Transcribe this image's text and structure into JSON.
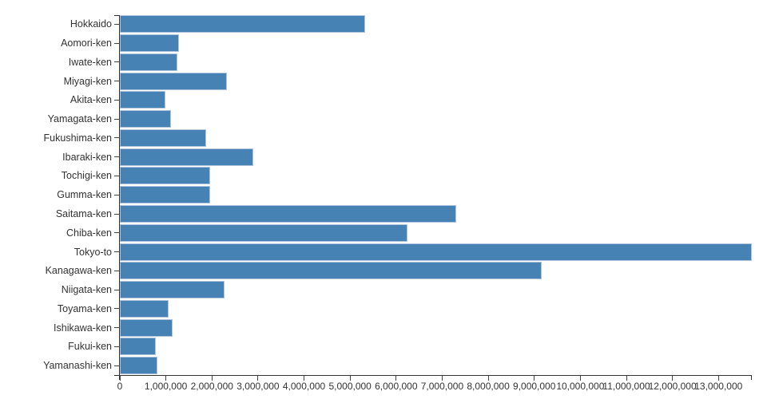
{
  "chart_data": {
    "type": "bar",
    "orientation": "horizontal",
    "title": "",
    "xlabel": "",
    "ylabel": "",
    "grid": false,
    "legend": false,
    "bar_color": "#4682b4",
    "bar_stroke_color": "#b0c4de",
    "axis_color": "#333333",
    "text_color": "#333333",
    "xlim": [
      0,
      13724000
    ],
    "x_tick_interval": 1000000,
    "x_tick_labels": [
      "0",
      "1,000,000",
      "2,000,000",
      "3,000,000",
      "4,000,000",
      "5,000,000",
      "6,000,000",
      "7,000,000",
      "8,000,000",
      "9,000,000",
      "10,000,000",
      "11,000,000",
      "12,000,000",
      "13,000,000"
    ],
    "categories": [
      "Hokkaido",
      "Aomori-ken",
      "Iwate-ken",
      "Miyagi-ken",
      "Akita-ken",
      "Yamagata-ken",
      "Fukushima-ken",
      "Ibaraki-ken",
      "Tochigi-ken",
      "Gumma-ken",
      "Saitama-ken",
      "Chiba-ken",
      "Tokyo-to",
      "Kanagawa-ken",
      "Niigata-ken",
      "Toyama-ken",
      "Ishikawa-ken",
      "Fukui-ken",
      "Yamanashi-ken"
    ],
    "values": [
      5320000,
      1278000,
      1255000,
      2323000,
      996000,
      1102000,
      1882000,
      2892000,
      1957000,
      1960000,
      7310000,
      6246000,
      13724000,
      9159000,
      2267000,
      1056000,
      1147000,
      779000,
      823000
    ]
  }
}
